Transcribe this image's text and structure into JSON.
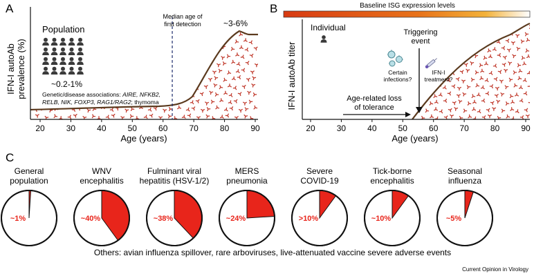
{
  "panels": {
    "a": {
      "letter": "A",
      "population_label": "Population",
      "ylabel_line1": "IFN-I autoAb",
      "ylabel_line2": "prevalence (%)",
      "xlabel": "Age (years)",
      "xticks": [
        "20",
        "30",
        "40",
        "50",
        "60",
        "70",
        "80",
        "90"
      ],
      "median_line1": "Median age of",
      "median_line2": "first detection",
      "median_age": 63,
      "low_label": "~0.2-1%",
      "high_label": "~3-6%",
      "assoc": {
        "l1a": "Genetic/disease associations: ",
        "l1b": "AIRE, NFKB2,",
        "l2a": "RELB, NIK, FOXP3, RAG1/RAG2",
        "l2b": "; thymoma"
      }
    },
    "b": {
      "letter": "B",
      "bar_title": "Baseline ISG expression levels",
      "individual_label": "Individual",
      "ylabel": "IFN-I autoAb titer",
      "xlabel": "Age (years)",
      "xticks": [
        "20",
        "30",
        "40",
        "50",
        "60",
        "70",
        "80",
        "90"
      ],
      "trigger_line1": "Triggering",
      "trigger_line2": "event",
      "infection_line1": "Certain",
      "infection_line2": "infections?",
      "treatment_line1": "IFN-I",
      "treatment_line2": "treatment?",
      "loss_line1": "Age-related loss",
      "loss_line2": "of tolerance"
    },
    "c": {
      "letter": "C",
      "footer": "Others: avian influenza spillover, rare arboviruses, live-attenuated vaccine severe adverse events",
      "pies": [
        {
          "title": [
            "General",
            "population"
          ],
          "label": "~1%",
          "value": 1
        },
        {
          "title": [
            "WNV",
            "encephalitis"
          ],
          "label": "~40%",
          "value": 40
        },
        {
          "title": [
            "Fulminant viral",
            "hepatitis (HSV-1/2)"
          ],
          "label": "~38%",
          "value": 38
        },
        {
          "title": [
            "MERS",
            "pneumonia"
          ],
          "label": "~24%",
          "value": 24
        },
        {
          "title": [
            "Severe",
            "COVID-19"
          ],
          "label": ">10%",
          "value": 10
        },
        {
          "title": [
            "Tick-borne",
            "encephalitis"
          ],
          "label": "~10%",
          "value": 10
        },
        {
          "title": [
            "Seasonal",
            "influenza"
          ],
          "label": "~5%",
          "value": 5
        }
      ]
    }
  },
  "credit": "Current Opinion in Virology",
  "colors": {
    "curve": "#5b3a1e",
    "antibody": "#c0392b",
    "pie_fill": "#e8251b",
    "person": "#3a3a3a",
    "gradient_start": "#d83a12",
    "gradient_mid": "#f3a623",
    "gradient_end": "#ffffff"
  }
}
